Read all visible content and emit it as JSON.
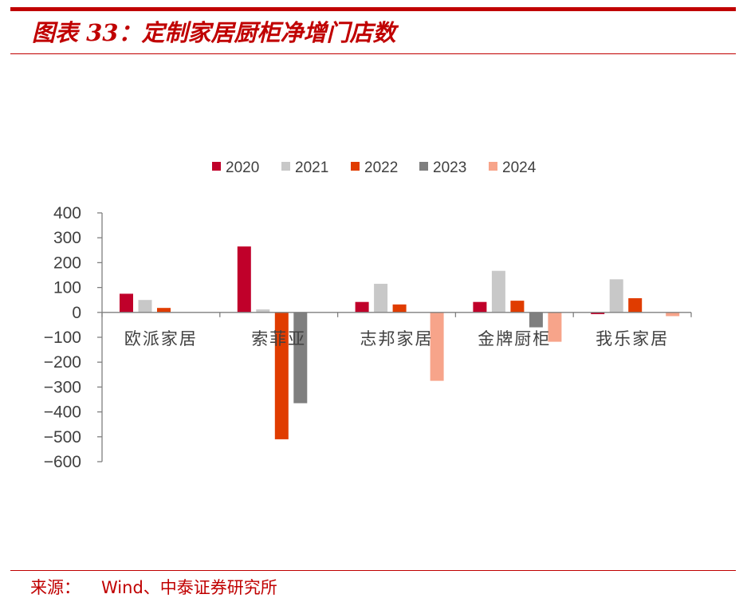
{
  "header": {
    "title": "图表 33：定制家居厨柜净增门店数"
  },
  "footer": {
    "source_label": "来源：",
    "source_text": "Wind、中泰证券研究所"
  },
  "chart_data": {
    "type": "bar",
    "title": "",
    "xlabel": "",
    "ylabel": "",
    "categories": [
      "欧派家居",
      "索菲亚",
      "志邦家居",
      "金牌厨柜",
      "我乐家居"
    ],
    "ylim": [
      -600,
      400
    ],
    "yticks": [
      400,
      300,
      200,
      100,
      0,
      -100,
      -200,
      -300,
      -400,
      -500,
      -600
    ],
    "legend_position": "top-center",
    "grid": false,
    "series": [
      {
        "name": "2020",
        "color": "#c0002a",
        "values": [
          75,
          265,
          42,
          42,
          -7
        ]
      },
      {
        "name": "2021",
        "color": "#c8c8c8",
        "values": [
          50,
          12,
          115,
          167,
          133
        ]
      },
      {
        "name": "2022",
        "color": "#e03c00",
        "values": [
          18,
          -510,
          32,
          47,
          57
        ]
      },
      {
        "name": "2023",
        "color": "#7f7f7f",
        "values": [
          0,
          -365,
          0,
          -60,
          0
        ]
      },
      {
        "name": "2024",
        "color": "#f7a48a",
        "values": [
          0,
          0,
          -275,
          -118,
          -15
        ]
      }
    ]
  }
}
